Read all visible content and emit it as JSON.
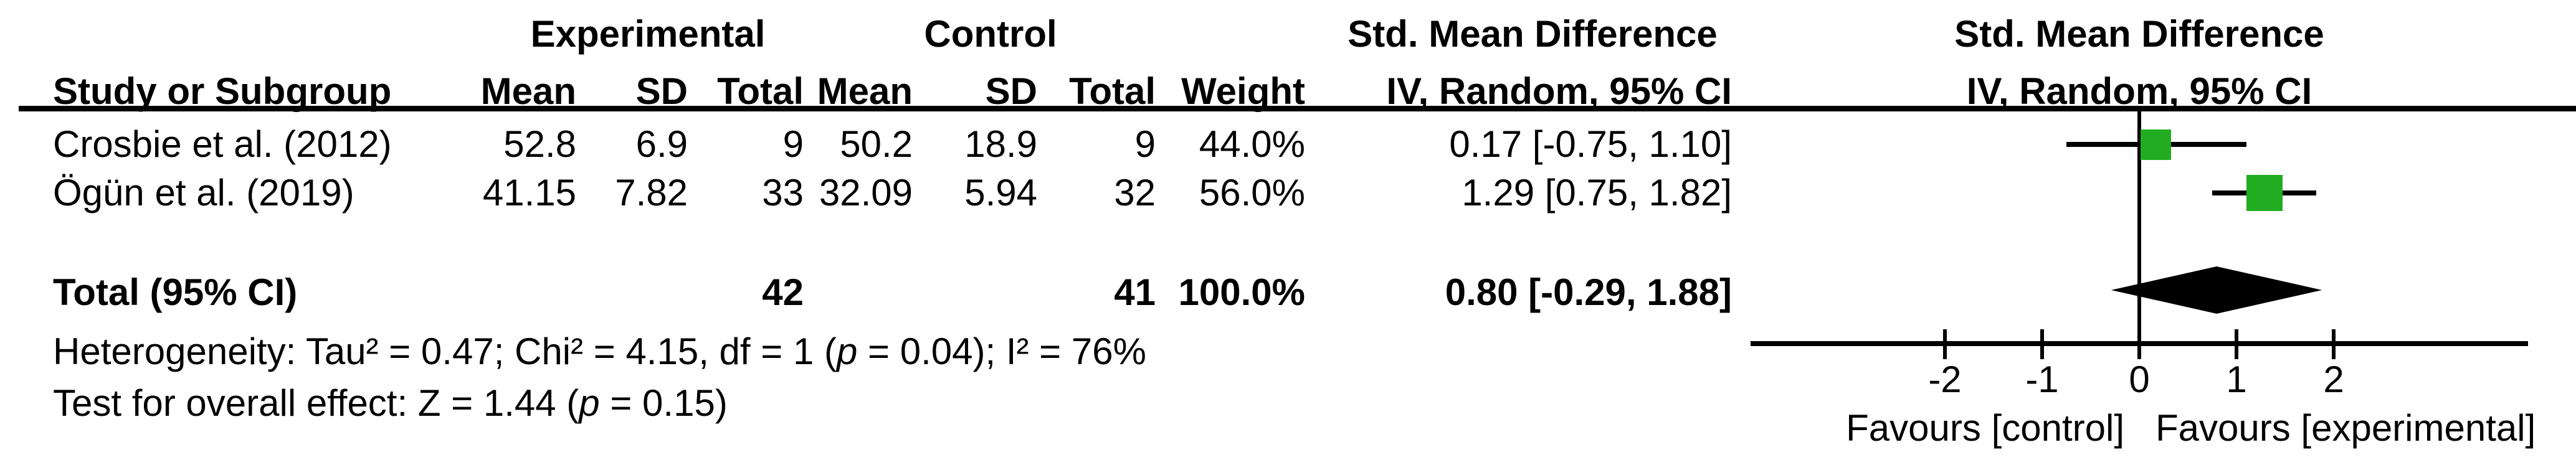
{
  "figure": {
    "group_headers": {
      "experimental": "Experimental",
      "control": "Control",
      "smd_text_column": "Std. Mean Difference",
      "smd_plot_column": "Std. Mean Difference"
    },
    "column_headers": {
      "study": "Study or Subgroup",
      "mean_e": "Mean",
      "sd_e": "SD",
      "total_e": "Total",
      "mean_c": "Mean",
      "sd_c": "SD",
      "total_c": "Total",
      "weight": "Weight",
      "ci_text_column": "IV, Random, 95% CI",
      "ci_plot_column": "IV, Random, 95% CI"
    },
    "rows": [
      {
        "study": "Crosbie et al. (2012)",
        "mean_e": "52.8",
        "sd_e": "6.9",
        "total_e": "9",
        "mean_c": "50.2",
        "sd_c": "18.9",
        "total_c": "9",
        "weight": "44.0%",
        "ci": "0.17 [-0.75, 1.10]"
      },
      {
        "study": "Ögün et al. (2019)",
        "mean_e": "41.15",
        "sd_e": "7.82",
        "total_e": "33",
        "mean_c": "32.09",
        "sd_c": "5.94",
        "total_c": "32",
        "weight": "56.0%",
        "ci": "1.29 [0.75, 1.82]"
      }
    ],
    "total_row": {
      "label": "Total (95% CI)",
      "total_e": "42",
      "total_c": "41",
      "weight": "100.0%",
      "ci": "0.80 [-0.29, 1.88]"
    },
    "footnotes": {
      "heterogeneity_pre": "Heterogeneity: Tau² = 0.47; Chi² = 4.15, df = 1 (",
      "heterogeneity_p": "p",
      "heterogeneity_post": " = 0.04); I² = 76%",
      "effect_pre": "Test for overall effect: Z = 1.44 (",
      "effect_p": "p",
      "effect_post": " = 0.15)"
    },
    "axis_labels": {
      "favours_left": "Favours [control]",
      "favours_right": "Favours [experimental]"
    },
    "colors": {
      "square": "#22AC22",
      "diamond": "#000000",
      "line": "#000000",
      "text": "#000000",
      "background": "#FFFFFF"
    }
  },
  "chart_data": {
    "type": "forest",
    "title": "Std. Mean Difference, IV, Random, 95% CI",
    "effect_measure": "Std. Mean Difference",
    "method": "IV, Random, 95% CI",
    "studies": [
      {
        "name": "Crosbie et al. (2012)",
        "experimental": {
          "mean": 52.8,
          "sd": 6.9,
          "total": 9
        },
        "control": {
          "mean": 50.2,
          "sd": 18.9,
          "total": 9
        },
        "weight_pct": 44.0,
        "estimate": 0.17,
        "ci_lower": -0.75,
        "ci_upper": 1.1,
        "marker_size_px": 49
      },
      {
        "name": "Ögün et al. (2019)",
        "experimental": {
          "mean": 41.15,
          "sd": 7.82,
          "total": 33
        },
        "control": {
          "mean": 32.09,
          "sd": 5.94,
          "total": 32
        },
        "weight_pct": 56.0,
        "estimate": 1.29,
        "ci_lower": 0.75,
        "ci_upper": 1.82,
        "marker_size_px": 58
      }
    ],
    "total": {
      "label": "Total (95% CI)",
      "total_experimental": 42,
      "total_control": 41,
      "weight_pct": 100.0,
      "estimate": 0.8,
      "ci_lower": -0.29,
      "ci_upper": 1.88
    },
    "heterogeneity": {
      "tau2": 0.47,
      "chi2": 4.15,
      "df": 1,
      "p": 0.04,
      "i2_pct": 76
    },
    "overall_effect": {
      "z": 1.44,
      "p": 0.15
    },
    "xaxis": {
      "range": [
        -4,
        4
      ],
      "ticks": [
        -2,
        -1,
        0,
        1,
        2
      ],
      "label_left": "Favours [control]",
      "label_right": "Favours [experimental]",
      "grid": false
    },
    "legend_position": "none"
  }
}
